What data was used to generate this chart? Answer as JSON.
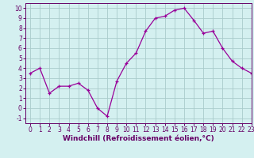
{
  "x": [
    0,
    1,
    2,
    3,
    4,
    5,
    6,
    7,
    8,
    9,
    10,
    11,
    12,
    13,
    14,
    15,
    16,
    17,
    18,
    19,
    20,
    21,
    22,
    23
  ],
  "y": [
    3.5,
    4.0,
    1.5,
    2.2,
    2.2,
    2.5,
    1.8,
    0.0,
    -0.8,
    2.7,
    4.5,
    5.5,
    7.7,
    9.0,
    9.2,
    9.8,
    10.0,
    8.8,
    7.5,
    7.7,
    6.0,
    4.7,
    4.0,
    3.5
  ],
  "line_color": "#990099",
  "marker": "+",
  "marker_size": 3,
  "bg_color": "#d4f0f0",
  "grid_color": "#aacccc",
  "xlabel": "Windchill (Refroidissement éolien,°C)",
  "xlim": [
    -0.5,
    23
  ],
  "ylim": [
    -1.5,
    10.5
  ],
  "xticks": [
    0,
    1,
    2,
    3,
    4,
    5,
    6,
    7,
    8,
    9,
    10,
    11,
    12,
    13,
    14,
    15,
    16,
    17,
    18,
    19,
    20,
    21,
    22,
    23
  ],
  "yticks": [
    -1,
    0,
    1,
    2,
    3,
    4,
    5,
    6,
    7,
    8,
    9,
    10
  ],
  "axis_color": "#660066",
  "tick_fontsize": 5.5,
  "xlabel_fontsize": 6.5,
  "linewidth": 0.9,
  "spine_linewidth": 0.7
}
